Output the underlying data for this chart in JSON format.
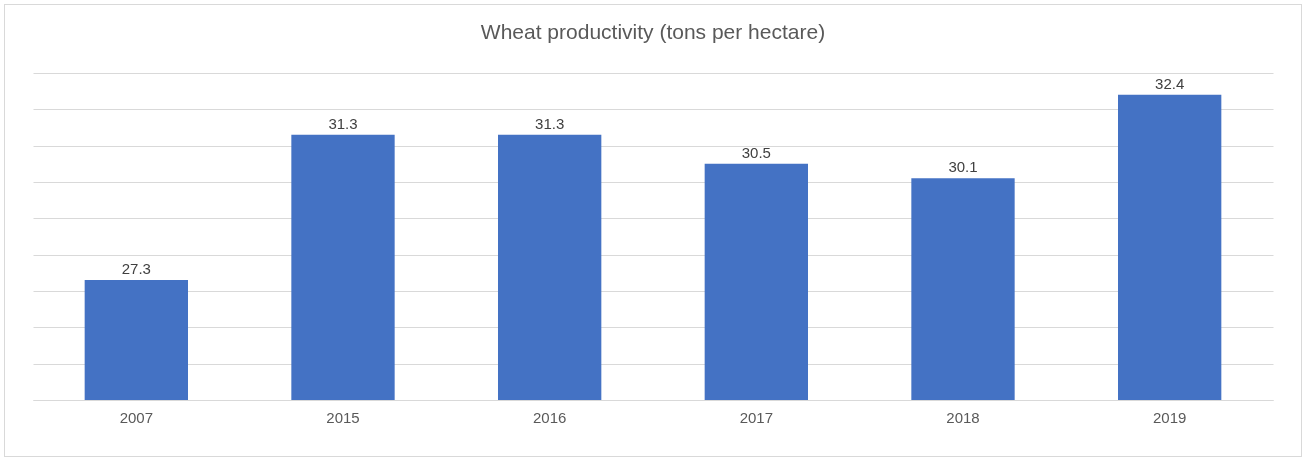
{
  "chart_data": {
    "type": "bar",
    "title": "Wheat productivity (tons per hectare)",
    "categories": [
      "2007",
      "2015",
      "2016",
      "2017",
      "2018",
      "2019"
    ],
    "values": [
      27.3,
      31.3,
      31.3,
      30.5,
      30.1,
      32.4
    ],
    "color": "#4472c4",
    "ylim": [
      24,
      33
    ],
    "yticks": [
      {
        "value": 24,
        "label": null
      },
      {
        "value": 25,
        "label": null
      },
      {
        "value": 26,
        "label": null
      },
      {
        "value": 27,
        "label": null
      },
      {
        "value": 28,
        "label": null
      },
      {
        "value": 29,
        "label": null
      },
      {
        "value": 30,
        "label": null
      },
      {
        "value": 31,
        "label": null
      },
      {
        "value": 32,
        "label": null
      },
      {
        "value": 33,
        "label": null
      }
    ],
    "grid": "y",
    "data_labels": true,
    "tick_labels": "x"
  }
}
